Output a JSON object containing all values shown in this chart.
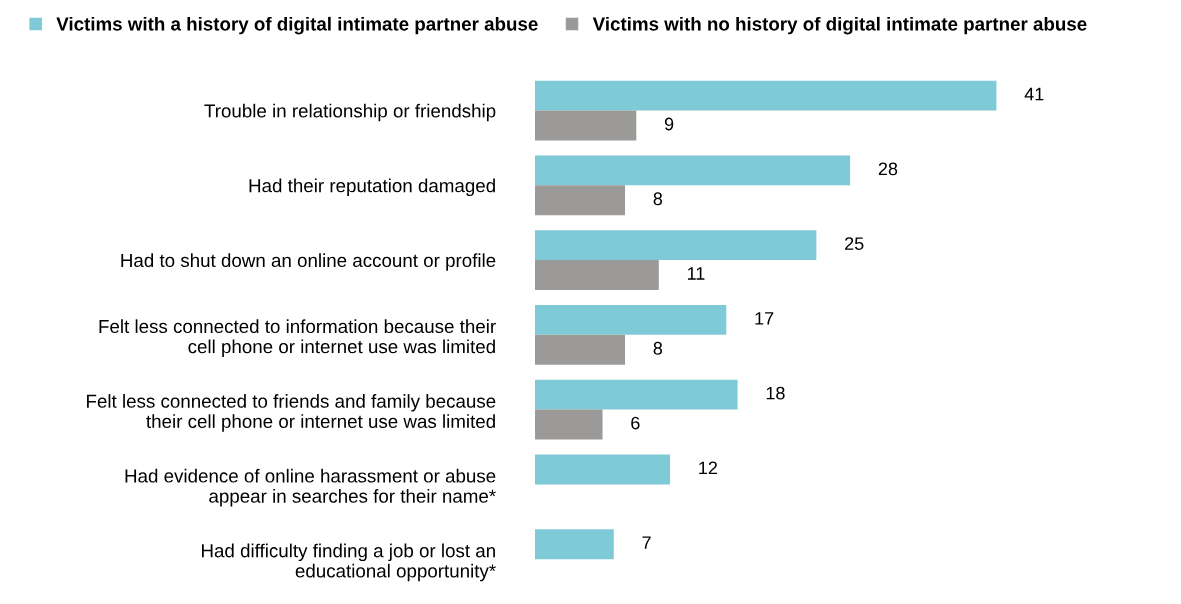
{
  "chart_data": {
    "type": "bar",
    "orientation": "horizontal",
    "legend": "top",
    "data_labels": true,
    "grid": false,
    "categories": [
      "Trouble in relationship or friendship",
      "Had their reputation damaged",
      "Had to shut down an online account or profile",
      "Felt less connected to information because their\ncell phone or internet use was limited",
      "Felt less connected to friends and family because\ntheir cell phone or internet use was limited",
      "Had evidence of online harassment or abuse\nappear in searches for their name*",
      "Had difficulty finding a job or lost an\neducational opportunity*"
    ],
    "series": [
      {
        "name": "Victims with a history of digital intimate partner abuse",
        "color": "#7ecad6",
        "values": [
          41,
          28,
          25,
          17,
          18,
          12,
          7
        ]
      },
      {
        "name": "Victims with no history of digital intimate partner abuse",
        "color": "#9b9a98",
        "values": [
          9,
          8,
          11,
          8,
          6,
          null,
          null
        ]
      }
    ]
  }
}
